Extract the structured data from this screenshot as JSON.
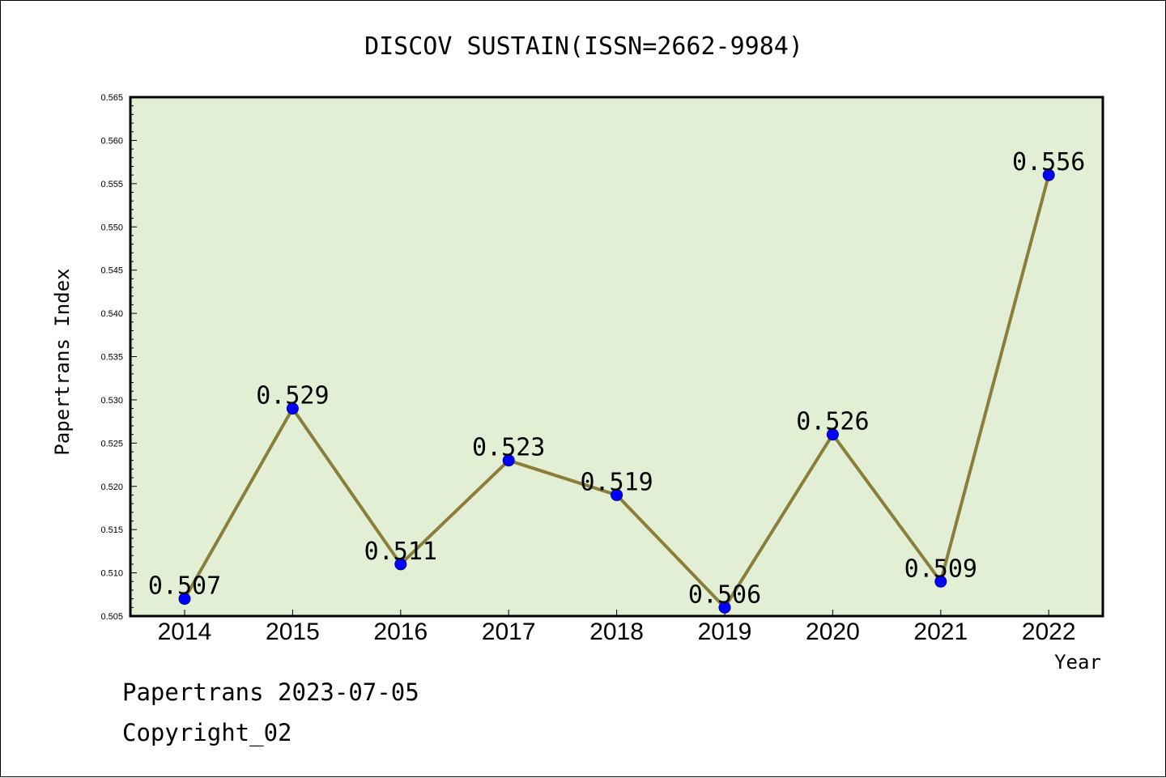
{
  "colors": {
    "plot_background": "#e2efd5",
    "line": "#8b7d3a",
    "marker": "#0000ff",
    "frame": "#000000"
  },
  "footer": {
    "line1": "Papertrans 2023-07-05",
    "line2": "Copyright_02"
  },
  "chart_data": {
    "type": "line",
    "title": "DISCOV SUSTAIN(ISSN=2662-9984)",
    "xlabel": "Year",
    "ylabel": "Papertrans Index",
    "categories": [
      "2014",
      "2015",
      "2016",
      "2017",
      "2018",
      "2019",
      "2020",
      "2021",
      "2022"
    ],
    "series": [
      {
        "values": [
          0.507,
          0.529,
          0.511,
          0.523,
          0.519,
          0.506,
          0.526,
          0.509,
          0.556
        ],
        "data_labels": [
          "0.507",
          "0.529",
          "0.511",
          "0.523",
          "0.519",
          "0.506",
          "0.526",
          "0.509",
          "0.556"
        ]
      }
    ],
    "ylim": [
      0.505,
      0.565
    ],
    "yticks": [
      "0.505",
      "0.510",
      "0.515",
      "0.520",
      "0.525",
      "0.530",
      "0.535",
      "0.540",
      "0.545",
      "0.550",
      "0.555",
      "0.560",
      "0.565"
    ],
    "grid": false,
    "legend": "none"
  }
}
